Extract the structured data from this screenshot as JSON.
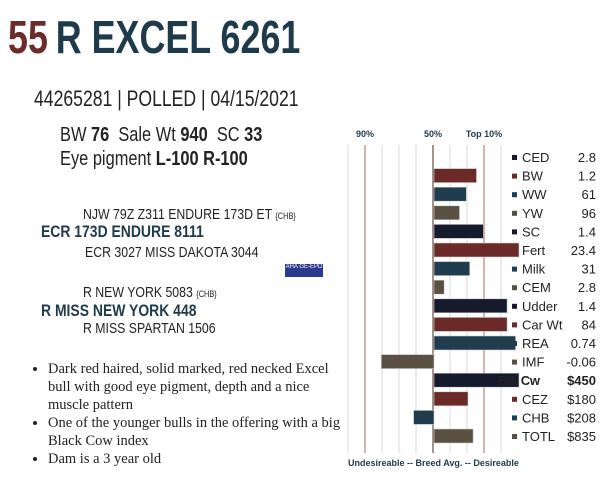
{
  "header": {
    "lot": "55",
    "name": "R EXCEL 6261"
  },
  "id_line": "44265281 | POLLED | 04/15/2021",
  "stats": {
    "bw_label": "BW",
    "bw": "76",
    "sale_wt_label": "Sale Wt",
    "sale_wt": "940",
    "sc_label": "SC",
    "sc": "33",
    "eye_label": "Eye pigment",
    "eye_l": "L-100",
    "eye_r": "R-100"
  },
  "pedigree": {
    "sire_sire": "NJW 79Z Z311 ENDURE 173D ET",
    "sire_sire_tag": "{CHB}",
    "sire": "ECR 173D ENDURE 8111",
    "sire_dam": "ECR 3027 MISS DAKOTA 3044",
    "dam_sire": "R NEW YORK 5083",
    "dam_sire_tag": "{CHB}",
    "dam": "R MISS NEW YORK 448",
    "dam_dam": "R MISS SPARTAN 1506",
    "logo_text": "AHA GE-EPD"
  },
  "bullets": [
    "Dark red haired, solid marked, red necked Excel bull with good eye pigment, depth and a nice muscle pattern",
    "One of the younger bulls in the offering with a big Black Cow index",
    "Dam is a 3 year old"
  ],
  "chart_data": {
    "type": "bar",
    "orientation": "horizontal",
    "header_labels": [
      "90%",
      "50%",
      "Top 10%"
    ],
    "footer": "Undesireable -- Breed Avg. --  Desireable",
    "scale_note_units": "gridline steps from breed average (50%); 90% at -4, Top 10% at +3",
    "colors": {
      "navy": "#151a2c",
      "red": "#6b2a27",
      "teal": "#1f3d4f",
      "olive": "#5a5042"
    },
    "categories": [
      "CED",
      "BW",
      "WW",
      "YW",
      "SC",
      "Fert",
      "Milk",
      "CEM",
      "Udder",
      "Car Wt",
      "REA",
      "IMF",
      "Blk Cw",
      "CEZ",
      "CHB",
      "TOTL"
    ],
    "values": [
      "2.8",
      "1.2",
      "61",
      "96",
      "1.4",
      "23.4",
      "31",
      "2.8",
      "1.4",
      "84",
      "0.74",
      "-0.06",
      "$450",
      "$180",
      "$208",
      "$835"
    ],
    "bar_scores": [
      0,
      2.5,
      1.9,
      1.5,
      2.9,
      5,
      2.1,
      0.6,
      4.3,
      4.3,
      4.8,
      -3.1,
      5,
      2,
      -1.2,
      2.3
    ],
    "bar_colors": [
      "navy",
      "red",
      "teal",
      "olive",
      "navy",
      "red",
      "teal",
      "olive",
      "navy",
      "red",
      "teal",
      "olive",
      "navy",
      "red",
      "teal",
      "olive"
    ],
    "bold_rows": [
      "Blk Cw"
    ]
  }
}
